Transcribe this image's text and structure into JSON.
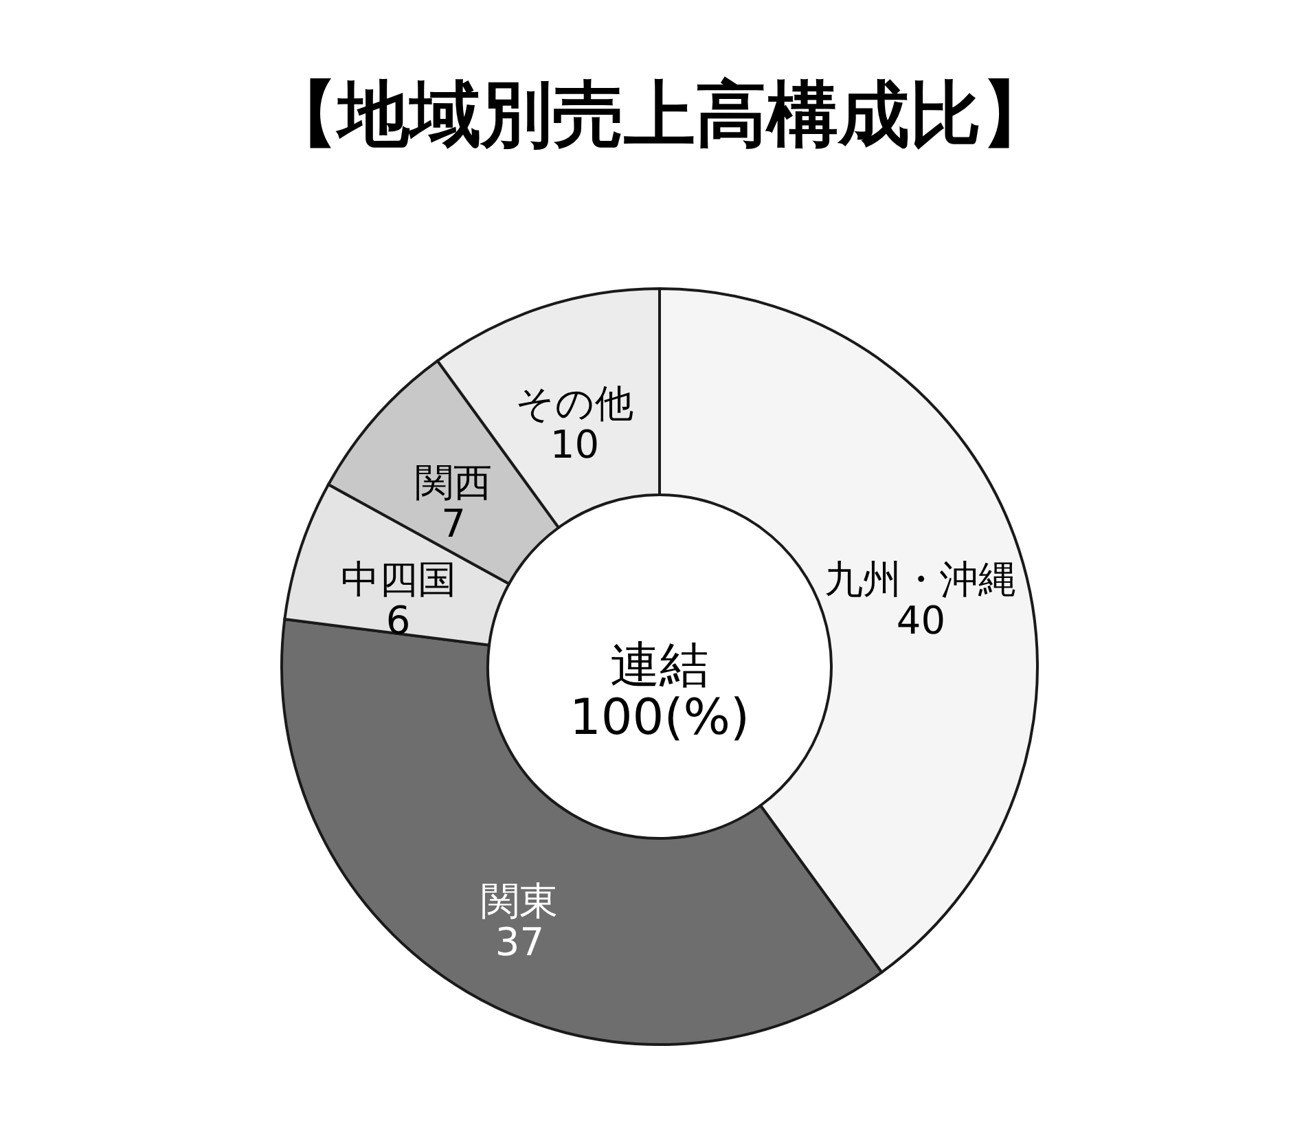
{
  "chart_data": {
    "type": "donut",
    "title": "【地域別売上高構成比】",
    "categories": [
      "九州・沖縄",
      "関東",
      "中四国",
      "関西",
      "その他"
    ],
    "values": [
      40,
      37,
      6,
      7,
      10
    ],
    "colors": [
      "#f5f5f5",
      "#6e6e6e",
      "#e4e4e4",
      "#c8c8c8",
      "#ececec"
    ],
    "data_labels": true,
    "annotations": [
      "連結\n100(%)"
    ]
  }
}
